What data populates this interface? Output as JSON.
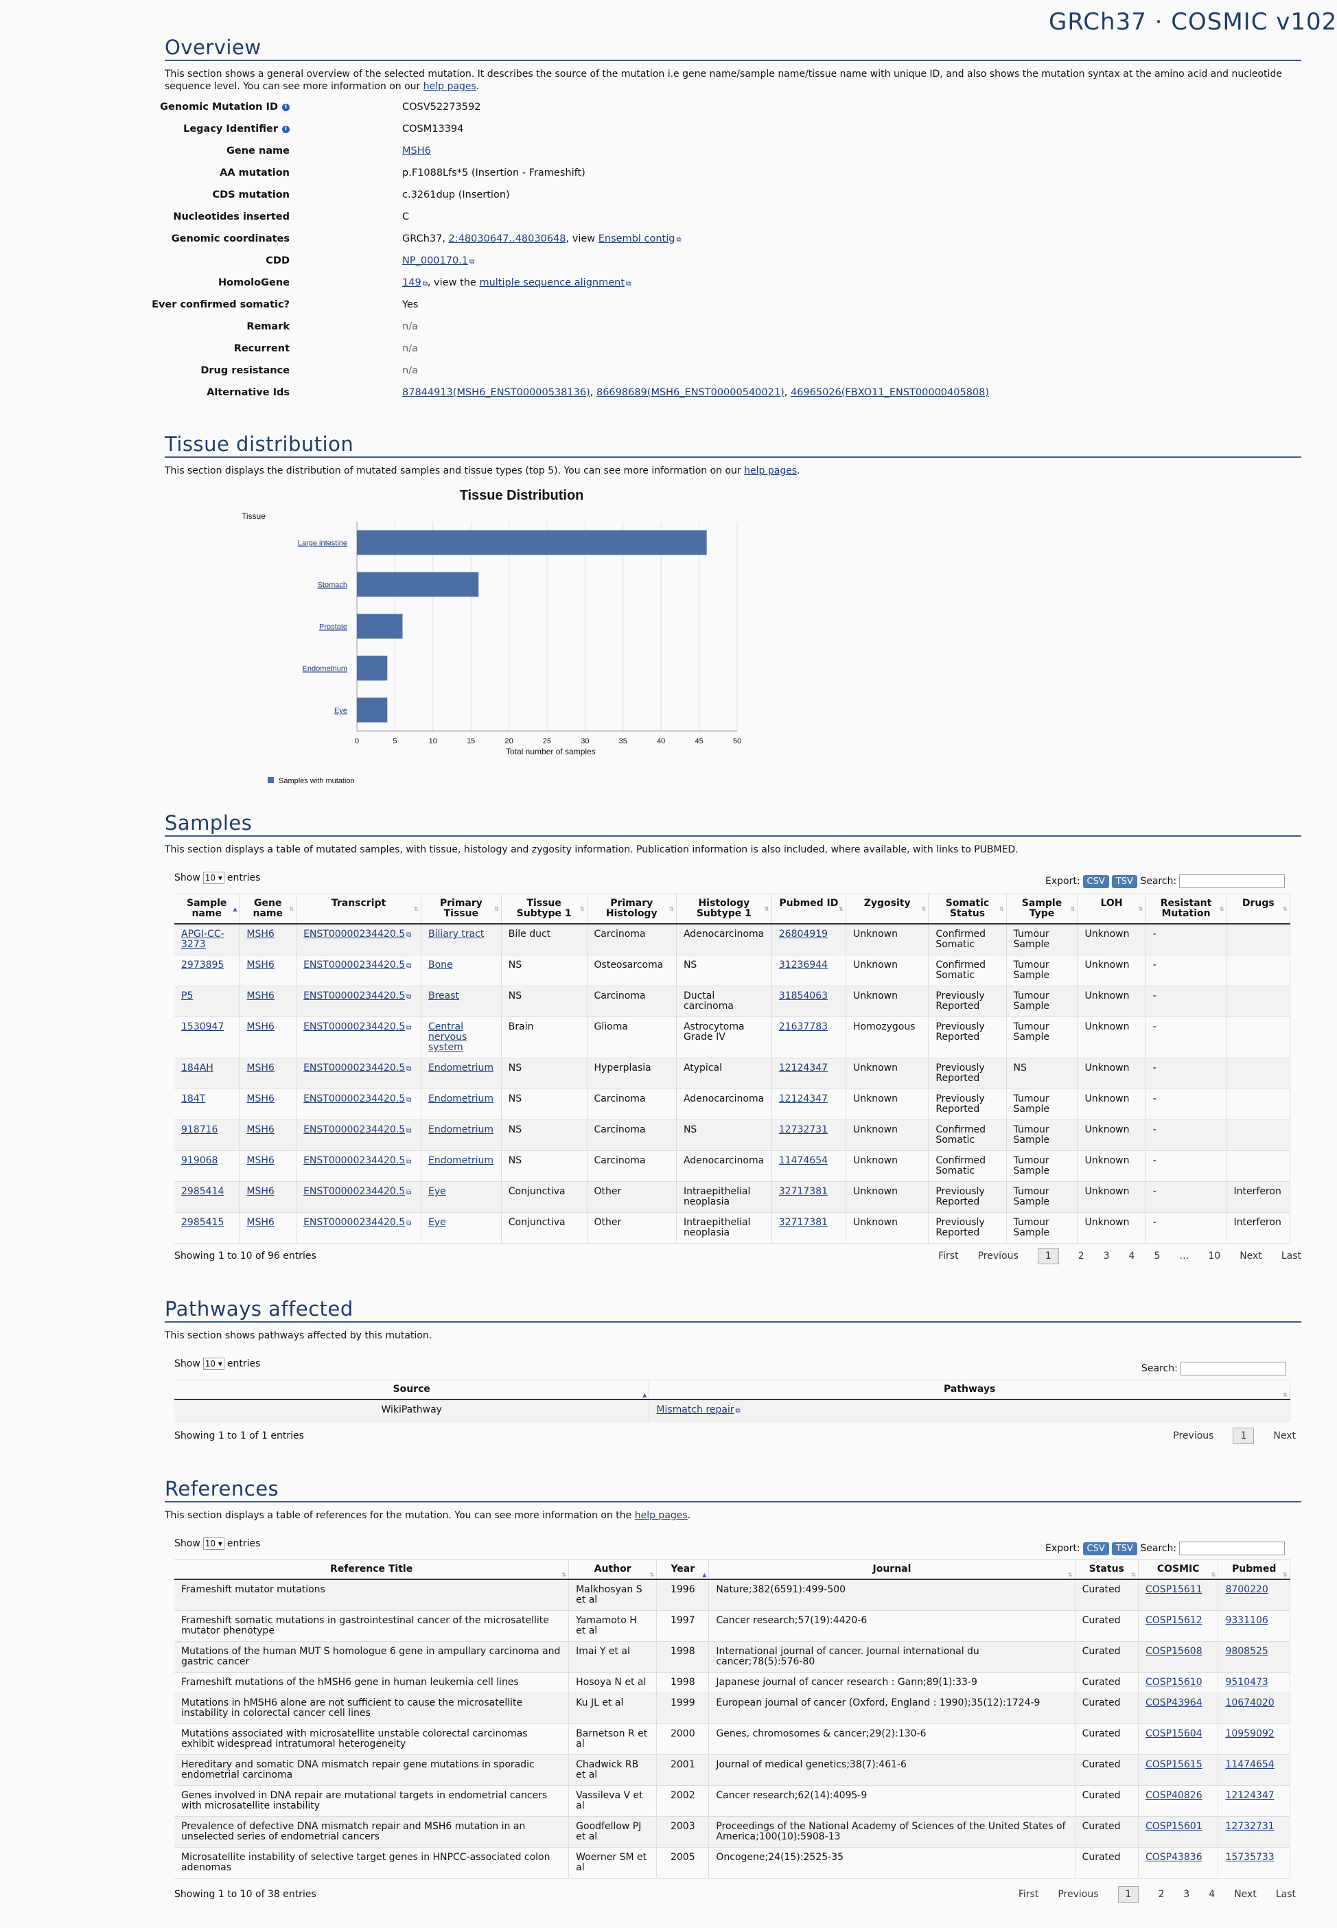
{
  "banner": "GRCh37 · COSMIC v102",
  "overview": {
    "title": "Overview",
    "intro": "This section shows a general overview of the selected mutation. It describes the source of the mutation i.e gene name/sample name/tissue name with unique ID, and also shows the mutation syntax at the amino acid and nucleotide sequence level. You can see more information on our",
    "help_link": "help pages",
    "rows": [
      {
        "key": "Genomic Mutation ID",
        "value": "COSV52273592",
        "info": true
      },
      {
        "key": "Legacy Identifier",
        "value": "COSM13394",
        "info": true
      },
      {
        "key": "Gene name",
        "value": "MSH6"
      },
      {
        "key": "AA mutation",
        "value": "p.F1088Lfs*5 (Insertion - Frameshift)"
      },
      {
        "key": "CDS mutation",
        "value": "c.3261dup (Insertion)"
      },
      {
        "key": "Nucleotides inserted",
        "value": "C"
      },
      {
        "key": "Genomic coordinates",
        "value_prefix": "GRCh37, ",
        "link1": "2:48030647..48030648",
        "value_mid": ", view ",
        "link2": "Ensembl contig"
      },
      {
        "key": "CDD",
        "link1": "NP_000170.1"
      },
      {
        "key": "HomoloGene",
        "link1": "149",
        "value_mid": ", view the ",
        "link2": "multiple sequence alignment"
      },
      {
        "key": "Ever confirmed somatic?",
        "value": "Yes"
      },
      {
        "key": "Remark",
        "value": "n/a"
      },
      {
        "key": "Recurrent",
        "value": "n/a"
      },
      {
        "key": "Drug resistance",
        "value": "n/a"
      },
      {
        "key": "Alternative Ids",
        "link1": "87844913(MSH6_ENST00000538136)",
        "link2": "86698689(MSH6_ENST00000540021)",
        "link3": "46965026(FBXO11_ENST00000405808)"
      }
    ]
  },
  "tissue": {
    "title": "Tissue distribution",
    "intro": "This section displays the distribution of mutated samples and tissue types (top 5). You can see more information on our",
    "help_link": "help pages"
  },
  "chart_data": {
    "type": "bar",
    "orientation": "horizontal",
    "title": "Tissue Distribution",
    "ylabel": "Tissue",
    "xlabel": "Total number of samples",
    "categories": [
      "Large intestine",
      "Stomach",
      "Prostate",
      "Endometrium",
      "Eye"
    ],
    "series": [
      {
        "name": "Samples with mutation",
        "values": [
          46,
          16,
          6,
          4,
          4
        ]
      }
    ],
    "xlim": [
      0,
      50
    ],
    "xticks": [
      0,
      5,
      10,
      15,
      20,
      25,
      30,
      35,
      40,
      45,
      50
    ],
    "bar_color": "#4a6fa5",
    "grid": true,
    "legend_position": "bottom-left"
  },
  "samples": {
    "title": "Samples",
    "intro": "This section displays a table of mutated samples, with tissue, histology and zygosity information. Publication information is also included, where available, with links to PUBMED.",
    "show": "Show",
    "entries": "entries",
    "length": "10",
    "export": "Export:",
    "csv": "CSV",
    "tsv": "TSV",
    "search": "Search:",
    "columns": [
      "Sample name",
      "Gene name",
      "Transcript",
      "Primary Tissue",
      "Tissue Subtype 1",
      "Primary Histology",
      "Histology Subtype 1",
      "Pubmed ID",
      "Zygosity",
      "Somatic Status",
      "Sample Type",
      "LOH",
      "Resistant Mutation",
      "Drugs"
    ],
    "rows": [
      [
        "APGI-CC-3273",
        "MSH6",
        "ENST00000234420.5",
        "Biliary tract",
        "Bile duct",
        "Carcinoma",
        "Adenocarcinoma",
        "26804919",
        "Unknown",
        "Confirmed Somatic",
        "Tumour Sample",
        "Unknown",
        "-",
        ""
      ],
      [
        "2973895",
        "MSH6",
        "ENST00000234420.5",
        "Bone",
        "NS",
        "Osteosarcoma",
        "NS",
        "31236944",
        "Unknown",
        "Confirmed Somatic",
        "Tumour Sample",
        "Unknown",
        "-",
        ""
      ],
      [
        "P5",
        "MSH6",
        "ENST00000234420.5",
        "Breast",
        "NS",
        "Carcinoma",
        "Ductal carcinoma",
        "31854063",
        "Unknown",
        "Previously Reported",
        "Tumour Sample",
        "Unknown",
        "-",
        ""
      ],
      [
        "1530947",
        "MSH6",
        "ENST00000234420.5",
        "Central nervous system",
        "Brain",
        "Glioma",
        "Astrocytoma Grade IV",
        "21637783",
        "Homozygous",
        "Previously Reported",
        "Tumour Sample",
        "Unknown",
        "-",
        ""
      ],
      [
        "184AH",
        "MSH6",
        "ENST00000234420.5",
        "Endometrium",
        "NS",
        "Hyperplasia",
        "Atypical",
        "12124347",
        "Unknown",
        "Previously Reported",
        "NS",
        "Unknown",
        "-",
        ""
      ],
      [
        "184T",
        "MSH6",
        "ENST00000234420.5",
        "Endometrium",
        "NS",
        "Carcinoma",
        "Adenocarcinoma",
        "12124347",
        "Unknown",
        "Previously Reported",
        "Tumour Sample",
        "Unknown",
        "-",
        ""
      ],
      [
        "918716",
        "MSH6",
        "ENST00000234420.5",
        "Endometrium",
        "NS",
        "Carcinoma",
        "NS",
        "12732731",
        "Unknown",
        "Confirmed Somatic",
        "Tumour Sample",
        "Unknown",
        "-",
        ""
      ],
      [
        "919068",
        "MSH6",
        "ENST00000234420.5",
        "Endometrium",
        "NS",
        "Carcinoma",
        "Adenocarcinoma",
        "11474654",
        "Unknown",
        "Confirmed Somatic",
        "Tumour Sample",
        "Unknown",
        "-",
        ""
      ],
      [
        "2985414",
        "MSH6",
        "ENST00000234420.5",
        "Eye",
        "Conjunctiva",
        "Other",
        "Intraepithelial neoplasia",
        "32717381",
        "Unknown",
        "Previously Reported",
        "Tumour Sample",
        "Unknown",
        "-",
        "Interferon"
      ],
      [
        "2985415",
        "MSH6",
        "ENST00000234420.5",
        "Eye",
        "Conjunctiva",
        "Other",
        "Intraepithelial neoplasia",
        "32717381",
        "Unknown",
        "Previously Reported",
        "Tumour Sample",
        "Unknown",
        "-",
        "Interferon"
      ]
    ],
    "info": "Showing 1 to 10 of 96 entries",
    "pager": [
      "First",
      "Previous",
      "1",
      "2",
      "3",
      "4",
      "5",
      "…",
      "10",
      "Next",
      "Last"
    ]
  },
  "pathways": {
    "title": "Pathways affected",
    "intro": "This section shows pathways affected by this mutation.",
    "show": "Show",
    "entries": "entries",
    "length": "10",
    "search": "Search:",
    "columns": [
      "Source",
      "Pathways"
    ],
    "rows": [
      [
        "WikiPathway",
        "Mismatch repair"
      ]
    ],
    "info": "Showing 1 to 1 of 1 entries",
    "pager": [
      "Previous",
      "1",
      "Next"
    ]
  },
  "references": {
    "title": "References",
    "intro": "This section displays a table of references for the mutation. You can see more information on the",
    "help_link": "help pages",
    "show": "Show",
    "entries": "entries",
    "length": "10",
    "export": "Export:",
    "csv": "CSV",
    "tsv": "TSV",
    "search": "Search:",
    "columns": [
      "Reference Title",
      "Author",
      "Year",
      "Journal",
      "Status",
      "COSMIC",
      "Pubmed"
    ],
    "rows": [
      [
        "Frameshift mutator mutations",
        "Malkhosyan S et al",
        "1996",
        "Nature;382(6591):499-500",
        "Curated",
        "COSP15611",
        "8700220"
      ],
      [
        "Frameshift somatic mutations in gastrointestinal cancer of the microsatellite mutator phenotype",
        "Yamamoto H et al",
        "1997",
        "Cancer research;57(19):4420-6",
        "Curated",
        "COSP15612",
        "9331106"
      ],
      [
        "Mutations of the human MUT S homologue 6 gene in ampullary carcinoma and gastric cancer",
        "Imai Y et al",
        "1998",
        "International journal of cancer. Journal international du cancer;78(5):576-80",
        "Curated",
        "COSP15608",
        "9808525"
      ],
      [
        "Frameshift mutations of the hMSH6 gene in human leukemia cell lines",
        "Hosoya N et al",
        "1998",
        "Japanese journal of cancer research : Gann;89(1):33-9",
        "Curated",
        "COSP15610",
        "9510473"
      ],
      [
        "Mutations in hMSH6 alone are not sufficient to cause the microsatellite instability in colorectal cancer cell lines",
        "Ku JL et al",
        "1999",
        "European journal of cancer (Oxford, England : 1990);35(12):1724-9",
        "Curated",
        "COSP43964",
        "10674020"
      ],
      [
        "Mutations associated with microsatellite unstable colorectal carcinomas exhibit widespread intratumoral heterogeneity",
        "Barnetson R et al",
        "2000",
        "Genes, chromosomes & cancer;29(2):130-6",
        "Curated",
        "COSP15604",
        "10959092"
      ],
      [
        "Hereditary and somatic DNA mismatch repair gene mutations in sporadic endometrial carcinoma",
        "Chadwick RB et al",
        "2001",
        "Journal of medical genetics;38(7):461-6",
        "Curated",
        "COSP15615",
        "11474654"
      ],
      [
        "Genes involved in DNA repair are mutational targets in endometrial cancers with microsatellite instability",
        "Vassileva V et al",
        "2002",
        "Cancer research;62(14):4095-9",
        "Curated",
        "COSP40826",
        "12124347"
      ],
      [
        "Prevalence of defective DNA mismatch repair and MSH6 mutation in an unselected series of endometrial cancers",
        "Goodfellow PJ et al",
        "2003",
        "Proceedings of the National Academy of Sciences of the United States of America;100(10):5908-13",
        "Curated",
        "COSP15601",
        "12732731"
      ],
      [
        "Microsatellite instability of selective target genes in HNPCC-associated colon adenomas",
        "Woerner SM et al",
        "2005",
        "Oncogene;24(15):2525-35",
        "Curated",
        "COSP43836",
        "15735733"
      ]
    ],
    "info": "Showing 1 to 10 of 38 entries",
    "pager": [
      "First",
      "Previous",
      "1",
      "2",
      "3",
      "4",
      "Next",
      "Last"
    ]
  }
}
